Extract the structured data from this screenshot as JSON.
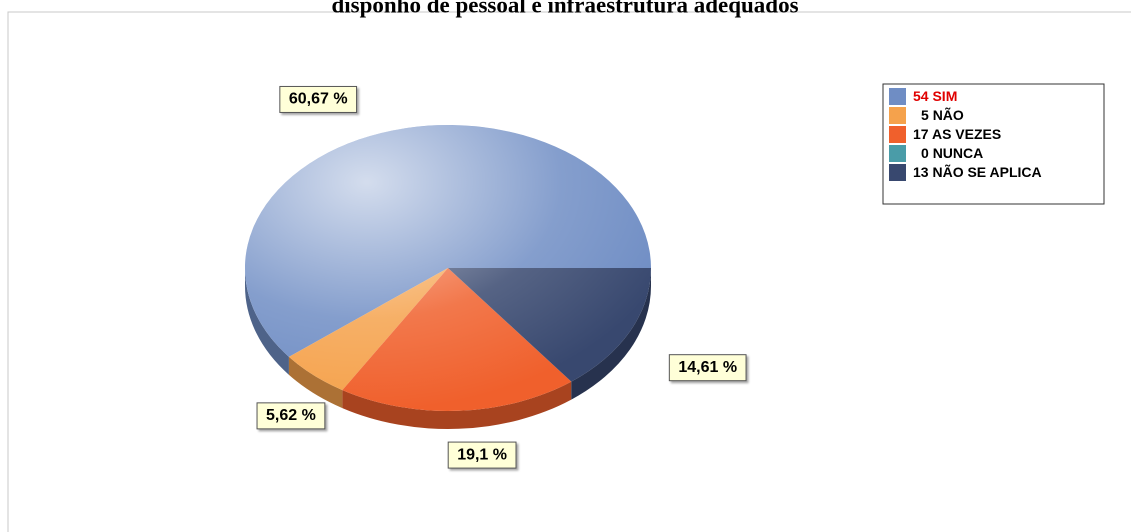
{
  "chart_data": {
    "type": "pie",
    "title": "disponho de pessoal e infraestrutura adequados",
    "categories": [
      "SIM",
      "NÃO",
      "AS VEZES",
      "NUNCA",
      "NÃO SE APLICA"
    ],
    "counts": [
      54,
      5,
      17,
      0,
      13
    ],
    "values": [
      60.67,
      5.62,
      19.1,
      0,
      14.61
    ],
    "value_labels": [
      "60,67 %",
      "5,62 %",
      "19,1 %",
      null,
      "14,61 %"
    ],
    "colors": [
      "#6f8dc4",
      "#f5a24c",
      "#f0602c",
      "#4a9ca8",
      "#38486f"
    ],
    "legend": "top-right"
  }
}
